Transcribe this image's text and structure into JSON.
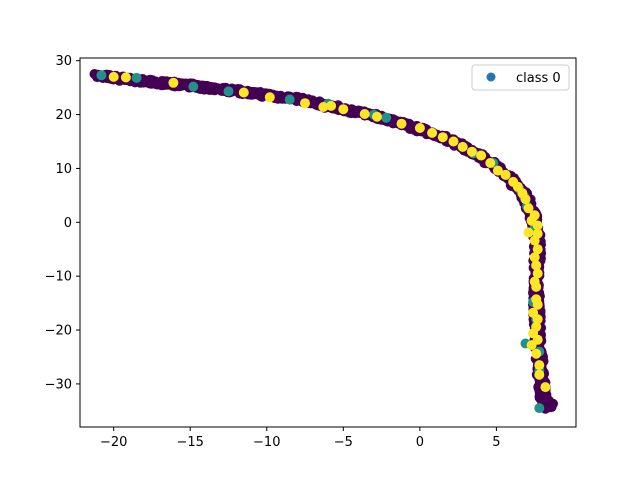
{
  "chart_data": {
    "type": "scatter",
    "title": "",
    "xlabel": "",
    "ylabel": "",
    "xlim": [
      -22.2,
      10.2
    ],
    "ylim": [
      -38.0,
      30.5
    ],
    "xticks": [
      -20,
      -15,
      -10,
      -5,
      0,
      5
    ],
    "yticks": [
      -30,
      -20,
      -10,
      0,
      10,
      20,
      30
    ],
    "xtick_labels": [
      "−20",
      "−15",
      "−10",
      "−5",
      "0",
      "5"
    ],
    "ytick_labels": [
      "−30",
      "−20",
      "−10",
      "0",
      "10",
      "20",
      "30"
    ],
    "grid": false,
    "legend": {
      "position": "top-right",
      "entries": [
        {
          "label": "class 0",
          "color": "#1f77b4"
        }
      ]
    },
    "class_colors": {
      "purple": "#440154",
      "teal": "#21918c",
      "yellow": "#fde725"
    },
    "curve": [
      [
        -21.0,
        27.2
      ],
      [
        -20.0,
        26.9
      ],
      [
        -18.0,
        26.1
      ],
      [
        -16.0,
        25.7
      ],
      [
        -14.0,
        25.0
      ],
      [
        -12.0,
        24.4
      ],
      [
        -10.0,
        23.6
      ],
      [
        -8.0,
        22.9
      ],
      [
        -6.0,
        21.6
      ],
      [
        -4.0,
        20.4
      ],
      [
        -2.0,
        19.1
      ],
      [
        0.0,
        17.3
      ],
      [
        2.0,
        15.2
      ],
      [
        3.5,
        13.0
      ],
      [
        5.0,
        10.2
      ],
      [
        6.0,
        7.8
      ],
      [
        6.8,
        5.0
      ],
      [
        7.3,
        2.0
      ],
      [
        7.6,
        -1.0
      ],
      [
        7.7,
        -5.0
      ],
      [
        7.6,
        -10.0
      ],
      [
        7.6,
        -15.0
      ],
      [
        7.7,
        -20.0
      ],
      [
        7.8,
        -25.0
      ],
      [
        7.9,
        -28.5
      ],
      [
        8.0,
        -31.0
      ],
      [
        8.1,
        -33.0
      ],
      [
        8.4,
        -34.2
      ]
    ],
    "teal_points": [
      [
        -20.8,
        27.3
      ],
      [
        -18.5,
        26.8
      ],
      [
        -14.8,
        25.2
      ],
      [
        -12.5,
        24.3
      ],
      [
        -8.5,
        22.8
      ],
      [
        -6.0,
        22.0
      ],
      [
        -3.0,
        20.0
      ],
      [
        -2.2,
        19.4
      ],
      [
        3.5,
        12.8
      ],
      [
        4.8,
        11.0
      ],
      [
        6.5,
        6.2
      ],
      [
        6.8,
        4.8
      ],
      [
        7.0,
        3.0
      ],
      [
        7.5,
        -1.0
      ],
      [
        7.6,
        -8.0
      ],
      [
        7.4,
        -14.8
      ],
      [
        7.6,
        -18.0
      ],
      [
        6.9,
        -22.5
      ],
      [
        7.8,
        -24.0
      ],
      [
        7.8,
        -27.5
      ],
      [
        7.8,
        -34.5
      ]
    ],
    "yellow_points": [
      [
        -20.0,
        27.0
      ],
      [
        -19.2,
        26.9
      ],
      [
        -16.1,
        25.9
      ],
      [
        -11.5,
        24.1
      ],
      [
        -9.8,
        23.2
      ],
      [
        -7.5,
        22.1
      ],
      [
        -6.3,
        21.4
      ],
      [
        -5.8,
        21.6
      ],
      [
        -5.0,
        21.0
      ],
      [
        -3.6,
        20.1
      ],
      [
        -2.8,
        19.6
      ],
      [
        -1.2,
        18.3
      ],
      [
        0.0,
        17.5
      ],
      [
        0.8,
        16.6
      ],
      [
        1.5,
        15.8
      ],
      [
        2.2,
        15.0
      ],
      [
        2.8,
        14.0
      ],
      [
        3.4,
        13.1
      ],
      [
        4.0,
        12.4
      ],
      [
        4.6,
        11.0
      ],
      [
        5.1,
        9.6
      ],
      [
        5.6,
        8.8
      ],
      [
        6.1,
        7.5
      ],
      [
        6.4,
        6.6
      ],
      [
        6.7,
        5.4
      ],
      [
        6.9,
        4.3
      ],
      [
        7.1,
        2.6
      ],
      [
        7.3,
        0.3
      ],
      [
        7.5,
        1.3
      ],
      [
        7.7,
        -0.6
      ],
      [
        7.7,
        -2.1
      ],
      [
        7.1,
        -1.9
      ],
      [
        7.5,
        -3.4
      ],
      [
        7.7,
        -5.0
      ],
      [
        7.5,
        -6.5
      ],
      [
        7.6,
        -8.0
      ],
      [
        7.7,
        -9.5
      ],
      [
        7.5,
        -11.0
      ],
      [
        7.6,
        -12.0
      ],
      [
        7.6,
        -14.3
      ],
      [
        7.7,
        -15.3
      ],
      [
        7.4,
        -16.8
      ],
      [
        7.7,
        -18.0
      ],
      [
        7.6,
        -19.4
      ],
      [
        7.4,
        -20.6
      ],
      [
        7.7,
        -21.8
      ],
      [
        7.3,
        -22.8
      ],
      [
        7.6,
        -24.4
      ],
      [
        7.8,
        -26.5
      ],
      [
        7.8,
        -28.3
      ],
      [
        8.2,
        -30.6
      ]
    ]
  }
}
